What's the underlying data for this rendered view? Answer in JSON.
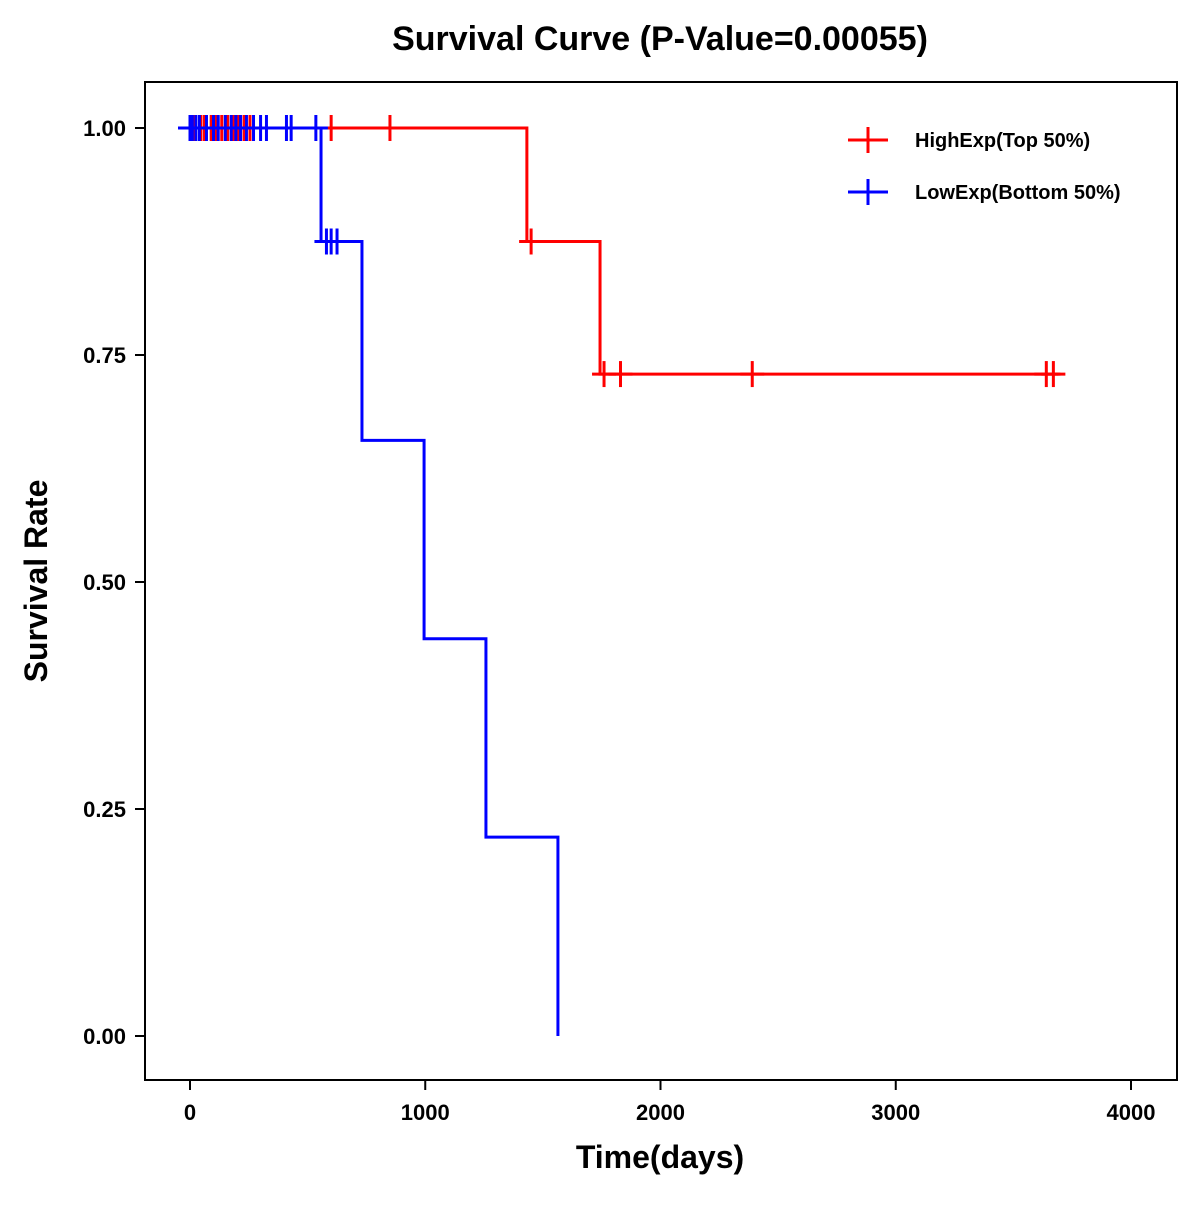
{
  "chart_data": {
    "type": "line",
    "subtype": "kaplan-meier step",
    "title": "Survival Curve (P-Value=0.00055)",
    "xlabel": "Time(days)",
    "ylabel": "Survival Rate",
    "xlim": [
      -190,
      4200
    ],
    "ylim": [
      -0.05,
      1.05
    ],
    "xticks": [
      0,
      1000,
      2000,
      3000,
      4000
    ],
    "xtick_labels": [
      "0",
      "1000",
      "2000",
      "3000",
      "4000"
    ],
    "yticks": [
      0,
      0.25,
      0.5,
      0.75,
      1
    ],
    "ytick_labels": [
      "0.00",
      "0.25",
      "0.50",
      "0.75",
      "1.00"
    ],
    "grid": false,
    "legend_position": "top-right",
    "series": [
      {
        "name": "HighExp(Top 50%)",
        "color": "#FF0000",
        "steps": [
          [
            0,
            1
          ],
          [
            1432,
            0.875
          ],
          [
            1743,
            0.729
          ]
        ],
        "end": 3700,
        "censors": [
          [
            20,
            1
          ],
          [
            45,
            1
          ],
          [
            60,
            1
          ],
          [
            90,
            1
          ],
          [
            110,
            1
          ],
          [
            135,
            1
          ],
          [
            160,
            1
          ],
          [
            185,
            1
          ],
          [
            205,
            1
          ],
          [
            230,
            1
          ],
          [
            255,
            1
          ],
          [
            600,
            1
          ],
          [
            850,
            1
          ],
          [
            1450,
            0.875
          ],
          [
            1760,
            0.729
          ],
          [
            1830,
            0.729
          ],
          [
            2390,
            0.729
          ],
          [
            3640,
            0.729
          ],
          [
            3670,
            0.729
          ]
        ]
      },
      {
        "name": "LowExp(Bottom 50%)",
        "color": "#0000FF",
        "steps": [
          [
            0,
            1
          ],
          [
            557,
            0.875
          ],
          [
            731,
            0.656
          ],
          [
            995,
            0.4375
          ],
          [
            1258,
            0.219
          ],
          [
            1564,
            0
          ]
        ],
        "end": 1564,
        "censors": [
          [
            0,
            1
          ],
          [
            10,
            1
          ],
          [
            25,
            1
          ],
          [
            40,
            1
          ],
          [
            70,
            1
          ],
          [
            100,
            1
          ],
          [
            120,
            1
          ],
          [
            150,
            1
          ],
          [
            175,
            1
          ],
          [
            195,
            1
          ],
          [
            215,
            1
          ],
          [
            240,
            1
          ],
          [
            270,
            1
          ],
          [
            300,
            1
          ],
          [
            325,
            1
          ],
          [
            410,
            1
          ],
          [
            430,
            1
          ],
          [
            535,
            1
          ],
          [
            580,
            0.875
          ],
          [
            600,
            0.875
          ],
          [
            625,
            0.875
          ]
        ]
      }
    ]
  }
}
